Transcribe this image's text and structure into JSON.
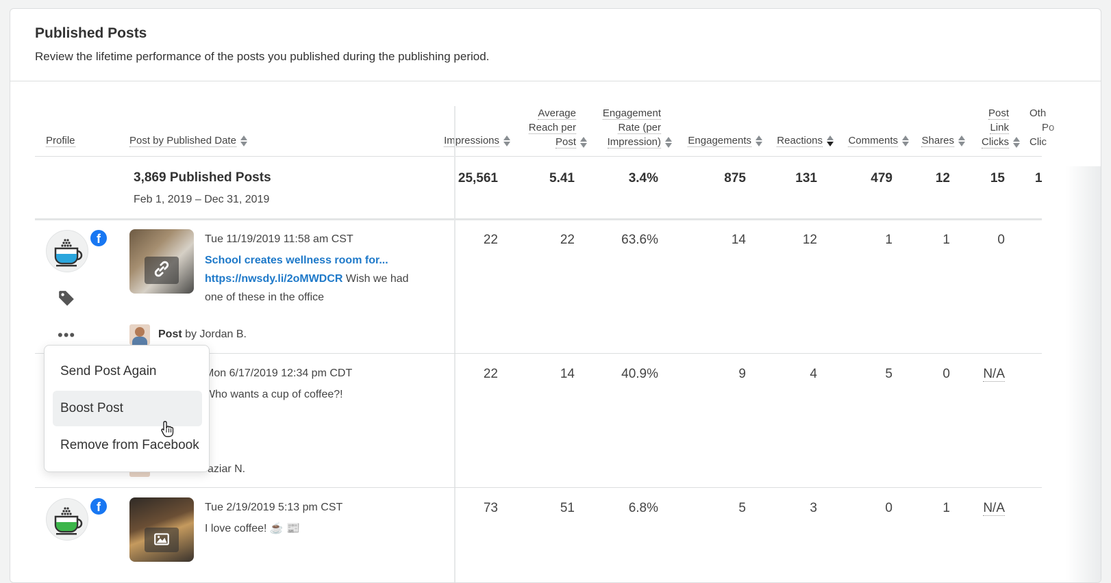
{
  "header": {
    "title": "Published Posts",
    "subtitle": "Review the lifetime performance of the posts you published during the publishing period."
  },
  "columns": {
    "profile": "Profile",
    "post": "Post by Published Date",
    "impressions": "Impressions",
    "avg_reach": [
      "Average",
      "Reach per",
      "Post"
    ],
    "eng_rate": [
      "Engagement",
      "Rate (per",
      "Impression)"
    ],
    "engagements": "Engagements",
    "reactions": "Reactions",
    "comments": "Comments",
    "shares": "Shares",
    "link_clicks": [
      "Post",
      "Link",
      "Clicks"
    ],
    "other": [
      "Oth",
      "Po",
      "Clic"
    ]
  },
  "summary": {
    "title": "3,869 Published Posts",
    "range": "Feb 1, 2019 – Dec 31, 2019",
    "impressions": "25,561",
    "avg_reach": "5.41",
    "eng_rate": "3.4%",
    "engagements": "875",
    "reactions": "131",
    "comments": "479",
    "shares": "12",
    "link_clicks": "15",
    "other": "1"
  },
  "rows": [
    {
      "date": "Tue 11/19/2019 11:58 am CST",
      "link_title": "School creates wellness room for...",
      "link_url": "https://nwsdy.li/2oMWDCR",
      "text": " Wish we had one of these in the office",
      "by_type": "Post",
      "by_word": " by ",
      "by_name": "Jordan B.",
      "thumb_icon": "link-icon",
      "impressions": "22",
      "avg_reach": "22",
      "eng_rate": "63.6%",
      "engagements": "14",
      "reactions": "12",
      "comments": "1",
      "shares": "1",
      "link_clicks": "0"
    },
    {
      "date": "Mon 6/17/2019 12:34 pm CDT",
      "text": "Who wants a cup of coffee?!",
      "by_name": "aziar N.",
      "impressions": "22",
      "avg_reach": "14",
      "eng_rate": "40.9%",
      "engagements": "9",
      "reactions": "4",
      "comments": "5",
      "shares": "0",
      "link_clicks": "N/A"
    },
    {
      "date": "Tue 2/19/2019 5:13 pm CST",
      "text": "I love coffee! ☕ 📰",
      "thumb_icon": "image-icon",
      "impressions": "73",
      "avg_reach": "51",
      "eng_rate": "6.8%",
      "engagements": "5",
      "reactions": "3",
      "comments": "0",
      "shares": "1",
      "link_clicks": "N/A"
    }
  ],
  "menu": {
    "items": [
      "Send Post Again",
      "Boost Post",
      "Remove from Facebook"
    ]
  },
  "colors": {
    "facebook": "#1877f2",
    "link": "#1e79c9",
    "menu_highlight": "#eef0f1",
    "cup_blue": "#2aa6dd",
    "cup_green": "#3cb54a"
  }
}
